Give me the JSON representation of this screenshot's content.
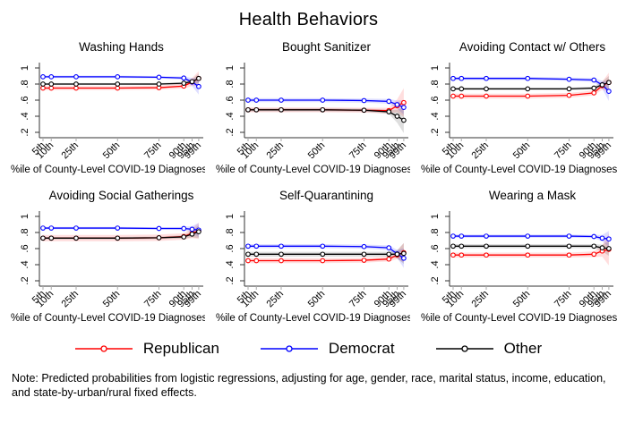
{
  "title": "Health Behaviors",
  "note": "Note: Predicted probabilities from logistic regressions, adjusting for age, gender, race, marital status, income, education, and state-by-urban/rural fixed effects.",
  "legend": {
    "items": [
      {
        "label": "Republican",
        "color": "#ff0000"
      },
      {
        "label": "Democrat",
        "color": "#0000ff"
      },
      {
        "label": "Other",
        "color": "#000000"
      }
    ]
  },
  "chart_data": {
    "type": "line",
    "layout": "2x3 small multiples with confidence bands",
    "xlabel": "%ile of County-Level COVID-19 Diagnoses",
    "x_categories": [
      "5th",
      "10th",
      "25th",
      "50th",
      "75th",
      "90th",
      "95th",
      "99th"
    ],
    "x_positions": [
      5,
      10,
      25,
      50,
      75,
      90,
      95,
      99
    ],
    "yticks": [
      ".2",
      ".4",
      ".6",
      ".8",
      "1"
    ],
    "ytick_values": [
      0.2,
      0.4,
      0.6,
      0.8,
      1
    ],
    "ylim": [
      0.12,
      1.07
    ],
    "grid": false,
    "legend_position": "bottom",
    "colors": {
      "Republican": "#ff0000",
      "Democrat": "#0000ff",
      "Other": "#000000"
    },
    "band_opacity": 0.13,
    "panels": [
      {
        "title": "Washing Hands",
        "series": [
          {
            "name": "Republican",
            "values": [
              0.75,
              0.75,
              0.75,
              0.75,
              0.755,
              0.775,
              0.825,
              0.87
            ],
            "ci": [
              0.025,
              0.025,
              0.025,
              0.025,
              0.025,
              0.03,
              0.05,
              0.09
            ]
          },
          {
            "name": "Democrat",
            "values": [
              0.89,
              0.89,
              0.89,
              0.89,
              0.885,
              0.875,
              0.825,
              0.77
            ],
            "ci": [
              0.015,
              0.015,
              0.015,
              0.015,
              0.015,
              0.02,
              0.05,
              0.1
            ]
          },
          {
            "name": "Other",
            "values": [
              0.8,
              0.8,
              0.8,
              0.8,
              0.8,
              0.81,
              0.83,
              0.87
            ],
            "ci": [
              0.012,
              0.012,
              0.012,
              0.012,
              0.012,
              0.015,
              0.03,
              0.06
            ]
          }
        ]
      },
      {
        "title": "Bought Sanitizer",
        "series": [
          {
            "name": "Republican",
            "values": [
              0.48,
              0.48,
              0.48,
              0.48,
              0.475,
              0.47,
              0.53,
              0.57
            ],
            "ci": [
              0.03,
              0.03,
              0.03,
              0.03,
              0.03,
              0.035,
              0.08,
              0.18
            ]
          },
          {
            "name": "Democrat",
            "values": [
              0.6,
              0.6,
              0.6,
              0.6,
              0.595,
              0.585,
              0.545,
              0.51
            ],
            "ci": [
              0.025,
              0.025,
              0.025,
              0.025,
              0.025,
              0.03,
              0.05,
              0.09
            ]
          },
          {
            "name": "Other",
            "values": [
              0.48,
              0.48,
              0.48,
              0.48,
              0.475,
              0.455,
              0.4,
              0.35
            ],
            "ci": [
              0.02,
              0.02,
              0.02,
              0.02,
              0.02,
              0.025,
              0.08,
              0.16
            ]
          }
        ]
      },
      {
        "title": "Avoiding Contact w/ Others",
        "series": [
          {
            "name": "Republican",
            "values": [
              0.65,
              0.65,
              0.65,
              0.65,
              0.66,
              0.69,
              0.78,
              0.82
            ],
            "ci": [
              0.03,
              0.03,
              0.03,
              0.03,
              0.03,
              0.03,
              0.05,
              0.12
            ]
          },
          {
            "name": "Democrat",
            "values": [
              0.87,
              0.87,
              0.87,
              0.87,
              0.86,
              0.85,
              0.79,
              0.71
            ],
            "ci": [
              0.02,
              0.02,
              0.02,
              0.02,
              0.02,
              0.025,
              0.05,
              0.12
            ]
          },
          {
            "name": "Other",
            "values": [
              0.74,
              0.74,
              0.74,
              0.74,
              0.74,
              0.75,
              0.79,
              0.82
            ],
            "ci": [
              0.015,
              0.015,
              0.015,
              0.015,
              0.015,
              0.02,
              0.04,
              0.08
            ]
          }
        ]
      },
      {
        "title": "Avoiding Social Gatherings",
        "series": [
          {
            "name": "Republican",
            "values": [
              0.73,
              0.73,
              0.73,
              0.73,
              0.735,
              0.75,
              0.79,
              0.82
            ],
            "ci": [
              0.04,
              0.04,
              0.04,
              0.04,
              0.04,
              0.04,
              0.06,
              0.1
            ]
          },
          {
            "name": "Democrat",
            "values": [
              0.855,
              0.855,
              0.855,
              0.855,
              0.85,
              0.85,
              0.84,
              0.83
            ],
            "ci": [
              0.015,
              0.015,
              0.015,
              0.015,
              0.015,
              0.02,
              0.04,
              0.09
            ]
          },
          {
            "name": "Other",
            "values": [
              0.73,
              0.73,
              0.73,
              0.73,
              0.735,
              0.745,
              0.78,
              0.81
            ],
            "ci": [
              0.015,
              0.015,
              0.015,
              0.015,
              0.015,
              0.02,
              0.04,
              0.08
            ]
          }
        ]
      },
      {
        "title": "Self-Quarantining",
        "series": [
          {
            "name": "Republican",
            "values": [
              0.45,
              0.45,
              0.45,
              0.45,
              0.455,
              0.47,
              0.52,
              0.55
            ],
            "ci": [
              0.03,
              0.03,
              0.03,
              0.03,
              0.03,
              0.03,
              0.05,
              0.12
            ]
          },
          {
            "name": "Democrat",
            "values": [
              0.63,
              0.63,
              0.63,
              0.63,
              0.625,
              0.61,
              0.535,
              0.48
            ],
            "ci": [
              0.025,
              0.025,
              0.025,
              0.025,
              0.025,
              0.03,
              0.05,
              0.12
            ]
          },
          {
            "name": "Other",
            "values": [
              0.53,
              0.53,
              0.53,
              0.53,
              0.53,
              0.53,
              0.53,
              0.54
            ],
            "ci": [
              0.03,
              0.03,
              0.03,
              0.03,
              0.03,
              0.03,
              0.05,
              0.13
            ]
          }
        ]
      },
      {
        "title": "Wearing a Mask",
        "series": [
          {
            "name": "Republican",
            "values": [
              0.52,
              0.52,
              0.52,
              0.52,
              0.52,
              0.53,
              0.57,
              0.59
            ],
            "ci": [
              0.03,
              0.03,
              0.03,
              0.03,
              0.03,
              0.035,
              0.07,
              0.2
            ]
          },
          {
            "name": "Democrat",
            "values": [
              0.755,
              0.755,
              0.755,
              0.755,
              0.755,
              0.75,
              0.73,
              0.72
            ],
            "ci": [
              0.02,
              0.02,
              0.02,
              0.02,
              0.02,
              0.02,
              0.04,
              0.1
            ]
          },
          {
            "name": "Other",
            "values": [
              0.63,
              0.63,
              0.63,
              0.63,
              0.63,
              0.63,
              0.61,
              0.6
            ],
            "ci": [
              0.025,
              0.025,
              0.025,
              0.025,
              0.025,
              0.025,
              0.04,
              0.09
            ]
          }
        ]
      }
    ]
  }
}
